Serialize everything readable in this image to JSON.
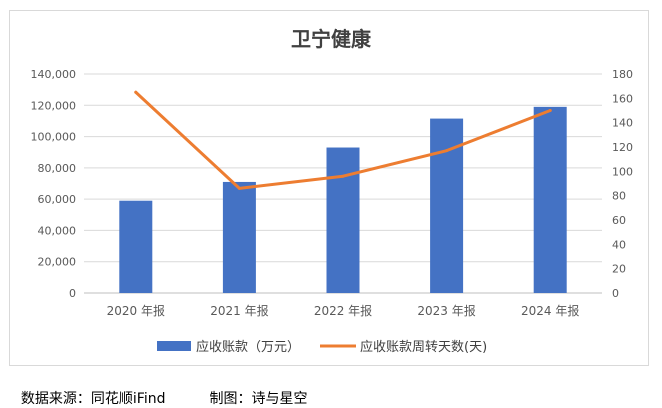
{
  "chart_data": {
    "type": "bar",
    "title": "卫宁健康",
    "categories": [
      "2020 年报",
      "2021 年报",
      "2022 年报",
      "2023 年报",
      "2024 年报"
    ],
    "series": [
      {
        "name": "应收账款（万元）",
        "type": "bar",
        "axis": "left",
        "color": "#4472c4",
        "values": [
          59000,
          71000,
          93000,
          111500,
          119000
        ]
      },
      {
        "name": "应收账款周转天数(天)",
        "type": "line",
        "axis": "right",
        "color": "#ed7d31",
        "values": [
          165,
          86,
          96,
          117,
          150
        ]
      }
    ],
    "y_left": {
      "min": 0,
      "max": 140000,
      "step": 20000,
      "tick_labels": [
        "0",
        "20,000",
        "40,000",
        "60,000",
        "80,000",
        "100,000",
        "120,000",
        "140,000"
      ]
    },
    "y_right": {
      "min": 0,
      "max": 180,
      "step": 20,
      "tick_labels": [
        "0",
        "20",
        "40",
        "60",
        "80",
        "100",
        "120",
        "140",
        "160",
        "180"
      ]
    },
    "grid": true,
    "legend": "bottom"
  },
  "footer": {
    "source": "数据来源：同花顺iFind",
    "credit": "制图：诗与星空"
  }
}
